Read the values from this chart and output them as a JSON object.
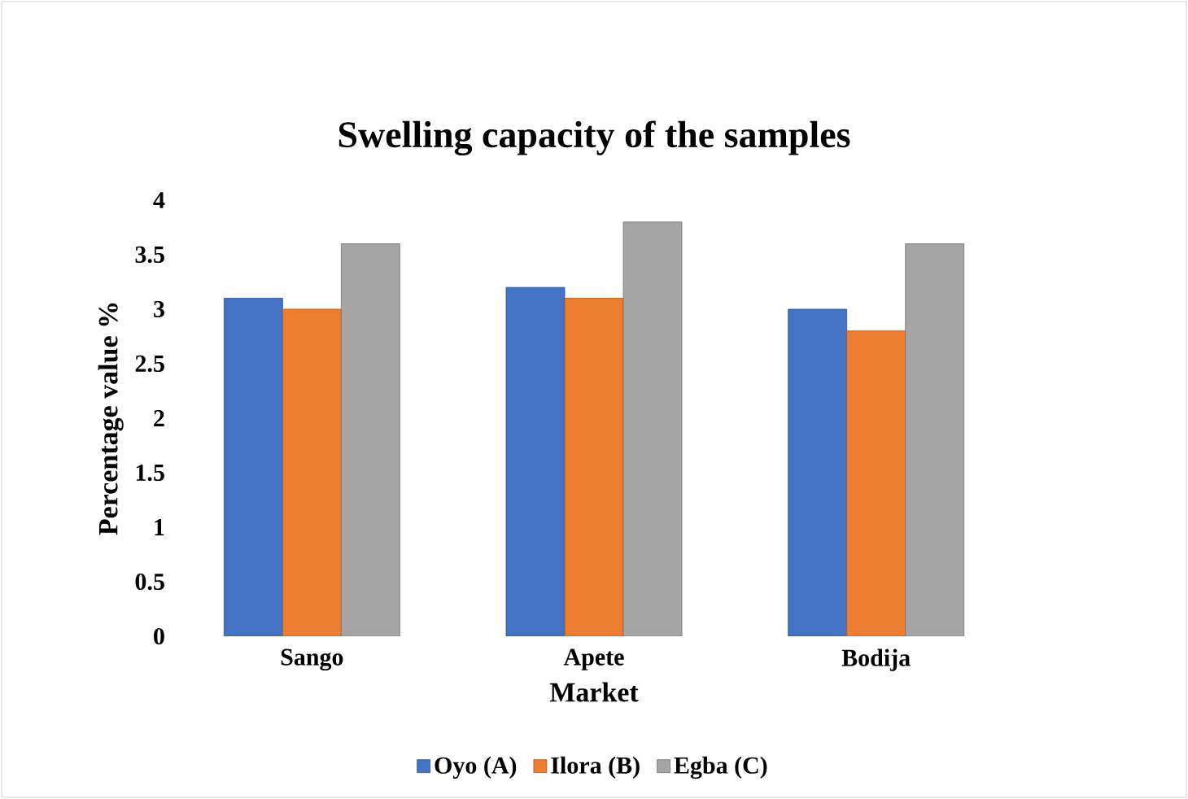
{
  "chart_data": {
    "type": "bar",
    "title": "Swelling capacity of the samples",
    "xlabel": "Market",
    "ylabel": "Percentage value %",
    "categories": [
      "Sango",
      "Apete",
      "Bodija"
    ],
    "series": [
      {
        "name": "Oyo (A)",
        "color": "#4472c4",
        "values": [
          3.1,
          3.2,
          3.0
        ]
      },
      {
        "name": "Ilora (B)",
        "color": "#ed7d31",
        "values": [
          3.0,
          3.1,
          2.8
        ]
      },
      {
        "name": "Egba (C)",
        "color": "#a5a5a5",
        "values": [
          3.6,
          3.8,
          3.6
        ]
      }
    ],
    "ylim": [
      0,
      4
    ],
    "yticks": [
      0,
      0.5,
      1,
      1.5,
      2,
      2.5,
      3,
      3.5,
      4
    ],
    "grid": false,
    "legend": "bottom"
  }
}
